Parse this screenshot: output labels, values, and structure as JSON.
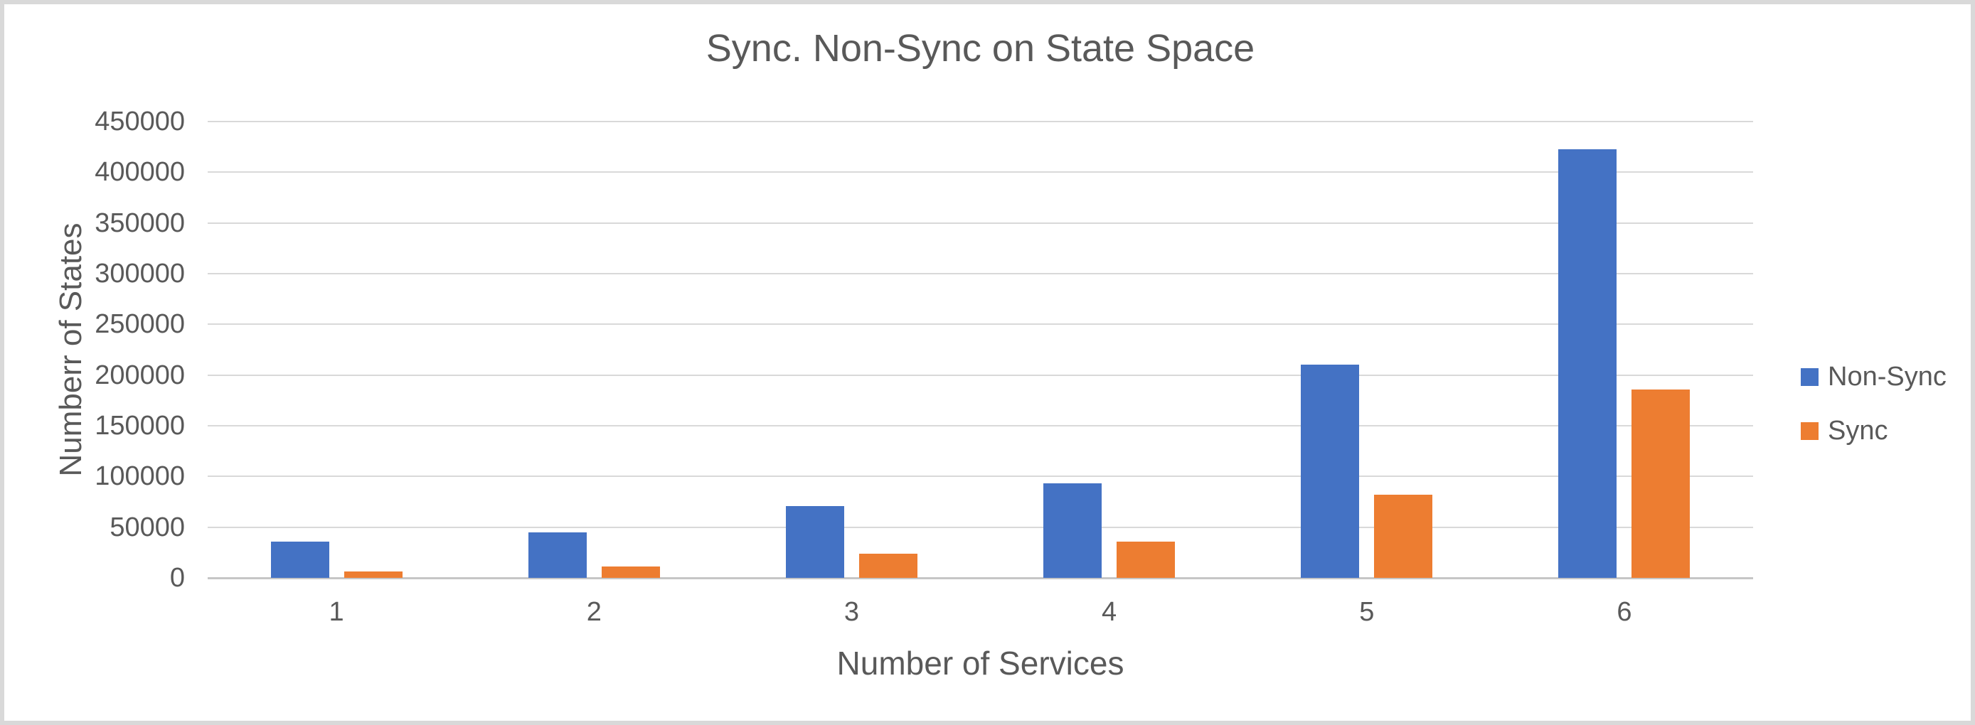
{
  "frame": {
    "border_color": "#d9d9d9",
    "background": "#ffffff"
  },
  "chart_data": {
    "type": "bar",
    "title": "Sync. Non-Sync on State Space",
    "xlabel": "Number of Services",
    "ylabel": "Numberr of States",
    "categories": [
      "1",
      "2",
      "3",
      "4",
      "5",
      "6"
    ],
    "series": [
      {
        "name": "Non-Sync",
        "color": "#4472C4",
        "values": [
          36000,
          45000,
          71000,
          93000,
          210000,
          423000
        ]
      },
      {
        "name": "Sync",
        "color": "#ED7D31",
        "values": [
          6000,
          11000,
          24000,
          36000,
          82000,
          186000
        ]
      }
    ],
    "ylim": [
      0,
      450000
    ],
    "ytick_step": 50000,
    "yticks": [
      "0",
      "50000",
      "100000",
      "150000",
      "200000",
      "250000",
      "300000",
      "350000",
      "400000",
      "450000"
    ],
    "grid": "horizontal",
    "legend_position": "right",
    "gridline_color": "#d9d9d9",
    "baseline_color": "#c6c6c6",
    "axis_text_color": "#595959",
    "title_color": "#595959"
  }
}
